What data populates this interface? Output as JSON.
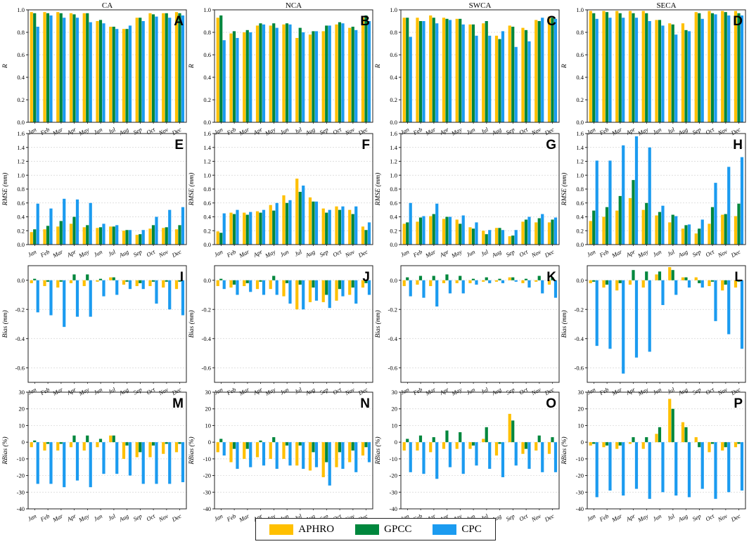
{
  "colors": {
    "APHRO": "#FFC000",
    "GPCC": "#00873D",
    "CPC": "#1B9BF0"
  },
  "legend": [
    {
      "key": "APHRO",
      "label": "APHRO"
    },
    {
      "key": "GPCC",
      "label": "GPCC"
    },
    {
      "key": "CPC",
      "label": "CPC"
    }
  ],
  "chart_data": {
    "type": "bar",
    "months": [
      "Jan",
      "Feb",
      "Mar",
      "Apr",
      "May",
      "Jun",
      "Jul",
      "Aug",
      "Sep",
      "Oct",
      "Nov",
      "Dec"
    ],
    "columns": [
      "CA",
      "NCA",
      "SWCA",
      "SECA"
    ],
    "rows": [
      {
        "metric": "R",
        "ylabel": "R",
        "ylim": [
          0,
          1.0
        ],
        "ticks": [
          0.0,
          0.2,
          0.4,
          0.6,
          0.8,
          1.0
        ],
        "tickdec": 1
      },
      {
        "metric": "RMSE",
        "ylabel": "RMSE (mm)",
        "ylim": [
          0,
          1.6
        ],
        "ticks": [
          0.0,
          0.2,
          0.4,
          0.6,
          0.8,
          1.0,
          1.2,
          1.4,
          1.6
        ],
        "tickdec": 1
      },
      {
        "metric": "Bias",
        "ylabel": "Bias (mm)",
        "ylim": [
          -0.7,
          0.1
        ],
        "ticks": [
          -0.6,
          -0.4,
          -0.2,
          0.0
        ],
        "tickdec": 1
      },
      {
        "metric": "RBias",
        "ylabel": "RBias (%)",
        "ylim": [
          -40,
          30
        ],
        "ticks": [
          -40,
          -30,
          -20,
          -10,
          0,
          10,
          20,
          30
        ],
        "tickdec": 0
      }
    ],
    "panels": [
      {
        "letter": "A",
        "title": "CA",
        "row": 0,
        "col": 0,
        "series": {
          "APHRO": [
            0.98,
            0.98,
            0.98,
            0.97,
            0.97,
            0.9,
            0.85,
            0.83,
            0.93,
            0.97,
            0.97,
            0.98
          ],
          "GPCC": [
            0.97,
            0.97,
            0.97,
            0.96,
            0.97,
            0.91,
            0.85,
            0.83,
            0.93,
            0.96,
            0.97,
            0.97
          ],
          "CPC": [
            0.85,
            0.95,
            0.93,
            0.93,
            0.89,
            0.88,
            0.83,
            0.86,
            0.9,
            0.94,
            0.93,
            0.95
          ]
        }
      },
      {
        "letter": "B",
        "title": "NCA",
        "row": 0,
        "col": 1,
        "series": {
          "APHRO": [
            0.93,
            0.79,
            0.8,
            0.86,
            0.86,
            0.87,
            0.75,
            0.78,
            0.81,
            0.87,
            0.84,
            0.93
          ],
          "GPCC": [
            0.95,
            0.81,
            0.82,
            0.88,
            0.88,
            0.88,
            0.84,
            0.81,
            0.86,
            0.89,
            0.85,
            0.95
          ],
          "CPC": [
            0.73,
            0.75,
            0.8,
            0.87,
            0.84,
            0.87,
            0.8,
            0.81,
            0.86,
            0.88,
            0.82,
            0.9
          ]
        }
      },
      {
        "letter": "C",
        "title": "SWCA",
        "row": 0,
        "col": 2,
        "series": {
          "APHRO": [
            0.93,
            0.93,
            0.95,
            0.93,
            0.92,
            0.87,
            0.88,
            0.77,
            0.86,
            0.84,
            0.91,
            0.94
          ],
          "GPCC": [
            0.93,
            0.9,
            0.93,
            0.92,
            0.92,
            0.87,
            0.9,
            0.74,
            0.85,
            0.82,
            0.9,
            0.93
          ],
          "CPC": [
            0.76,
            0.9,
            0.88,
            0.91,
            0.87,
            0.77,
            0.77,
            0.81,
            0.67,
            0.72,
            0.93,
            0.92
          ]
        }
      },
      {
        "letter": "D",
        "title": "SECA",
        "row": 0,
        "col": 3,
        "series": {
          "APHRO": [
            0.99,
            0.99,
            0.99,
            0.99,
            0.99,
            0.91,
            0.88,
            0.88,
            0.98,
            0.99,
            0.99,
            0.99
          ],
          "GPCC": [
            0.97,
            0.98,
            0.97,
            0.97,
            0.97,
            0.91,
            0.87,
            0.82,
            0.97,
            0.97,
            0.98,
            0.97
          ],
          "CPC": [
            0.92,
            0.93,
            0.93,
            0.93,
            0.9,
            0.86,
            0.78,
            0.81,
            0.92,
            0.96,
            0.95,
            0.95
          ]
        }
      },
      {
        "letter": "E",
        "title": "",
        "row": 1,
        "col": 0,
        "series": {
          "APHRO": [
            0.18,
            0.22,
            0.26,
            0.3,
            0.25,
            0.24,
            0.26,
            0.2,
            0.14,
            0.23,
            0.24,
            0.22
          ],
          "GPCC": [
            0.22,
            0.27,
            0.34,
            0.4,
            0.28,
            0.25,
            0.26,
            0.21,
            0.15,
            0.28,
            0.25,
            0.28
          ],
          "CPC": [
            0.59,
            0.52,
            0.66,
            0.65,
            0.6,
            0.3,
            0.28,
            0.21,
            0.21,
            0.4,
            0.5,
            0.54
          ]
        }
      },
      {
        "letter": "F",
        "title": "",
        "row": 1,
        "col": 1,
        "series": {
          "APHRO": [
            0.19,
            0.46,
            0.46,
            0.48,
            0.57,
            0.71,
            0.95,
            0.68,
            0.52,
            0.55,
            0.5,
            0.26
          ],
          "GPCC": [
            0.17,
            0.44,
            0.43,
            0.46,
            0.49,
            0.6,
            0.76,
            0.62,
            0.46,
            0.5,
            0.44,
            0.21
          ],
          "CPC": [
            0.45,
            0.5,
            0.47,
            0.5,
            0.6,
            0.64,
            0.85,
            0.62,
            0.5,
            0.55,
            0.55,
            0.32
          ]
        }
      },
      {
        "letter": "G",
        "title": "",
        "row": 1,
        "col": 2,
        "series": {
          "APHRO": [
            0.3,
            0.33,
            0.41,
            0.37,
            0.36,
            0.25,
            0.2,
            0.24,
            0.12,
            0.33,
            0.32,
            0.32
          ],
          "GPCC": [
            0.32,
            0.39,
            0.44,
            0.4,
            0.3,
            0.23,
            0.15,
            0.24,
            0.13,
            0.36,
            0.38,
            0.36
          ],
          "CPC": [
            0.6,
            0.41,
            0.59,
            0.4,
            0.42,
            0.32,
            0.21,
            0.21,
            0.21,
            0.4,
            0.44,
            0.39
          ]
        }
      },
      {
        "letter": "H",
        "title": "",
        "row": 1,
        "col": 3,
        "series": {
          "APHRO": [
            0.34,
            0.4,
            0.49,
            0.67,
            0.5,
            0.42,
            0.32,
            0.23,
            0.16,
            0.3,
            0.43,
            0.41
          ],
          "GPCC": [
            0.49,
            0.54,
            0.7,
            0.93,
            0.6,
            0.47,
            0.43,
            0.28,
            0.23,
            0.54,
            0.44,
            0.59
          ],
          "CPC": [
            1.21,
            1.21,
            1.43,
            1.56,
            1.4,
            0.56,
            0.41,
            0.29,
            0.36,
            0.89,
            1.12,
            1.26
          ]
        }
      },
      {
        "letter": "I",
        "title": "",
        "row": 2,
        "col": 0,
        "series": {
          "APHRO": [
            -0.02,
            -0.04,
            -0.05,
            -0.02,
            -0.04,
            -0.01,
            0.02,
            -0.03,
            -0.04,
            -0.04,
            -0.05,
            -0.06
          ],
          "GPCC": [
            0.01,
            -0.01,
            -0.01,
            0.04,
            0.04,
            0.01,
            0.02,
            -0.01,
            -0.02,
            -0.01,
            -0.01,
            -0.01
          ],
          "CPC": [
            -0.22,
            -0.24,
            -0.32,
            -0.25,
            -0.25,
            -0.11,
            -0.1,
            -0.06,
            -0.06,
            -0.16,
            -0.2,
            -0.24
          ]
        }
      },
      {
        "letter": "J",
        "title": "",
        "row": 2,
        "col": 1,
        "series": {
          "APHRO": [
            -0.04,
            -0.05,
            -0.04,
            -0.06,
            -0.06,
            -0.11,
            -0.2,
            -0.15,
            -0.15,
            -0.14,
            -0.1,
            -0.05
          ],
          "GPCC": [
            0.01,
            -0.03,
            -0.02,
            -0.01,
            0.03,
            -0.02,
            -0.03,
            -0.05,
            -0.1,
            -0.06,
            -0.05,
            -0.02
          ],
          "CPC": [
            -0.06,
            -0.1,
            -0.08,
            -0.1,
            -0.1,
            -0.16,
            -0.2,
            -0.14,
            -0.19,
            -0.11,
            -0.16,
            -0.1
          ]
        }
      },
      {
        "letter": "K",
        "title": "",
        "row": 2,
        "col": 2,
        "series": {
          "APHRO": [
            -0.04,
            -0.03,
            -0.04,
            -0.02,
            -0.02,
            -0.02,
            -0.01,
            -0.01,
            0.02,
            -0.02,
            -0.01,
            -0.03
          ],
          "GPCC": [
            0.02,
            0.03,
            0.03,
            0.04,
            0.03,
            0.01,
            0.02,
            0.01,
            0.02,
            0.01,
            0.03,
            0.02
          ],
          "CPC": [
            -0.11,
            -0.12,
            -0.18,
            -0.09,
            -0.09,
            -0.03,
            -0.02,
            -0.02,
            -0.01,
            -0.05,
            -0.09,
            -0.12
          ]
        }
      },
      {
        "letter": "L",
        "title": "",
        "row": 2,
        "col": 3,
        "series": {
          "APHRO": [
            -0.02,
            -0.05,
            -0.07,
            -0.03,
            -0.05,
            0.04,
            0.09,
            0.02,
            0.02,
            -0.04,
            -0.07,
            -0.05
          ],
          "GPCC": [
            -0.01,
            -0.03,
            -0.02,
            0.07,
            0.06,
            0.06,
            0.07,
            0.02,
            -0.02,
            -0.01,
            -0.03,
            -0.01
          ],
          "CPC": [
            -0.45,
            -0.47,
            -0.64,
            -0.53,
            -0.49,
            -0.17,
            -0.1,
            -0.05,
            -0.05,
            -0.28,
            -0.37,
            -0.47
          ]
        }
      },
      {
        "letter": "M",
        "title": "",
        "row": 3,
        "col": 0,
        "series": {
          "APHRO": [
            -3,
            -5,
            -5,
            -3,
            -5,
            -3,
            4,
            -10,
            -9,
            -9,
            -7,
            -6
          ],
          "GPCC": [
            1,
            -1,
            -1,
            4,
            4,
            2,
            4,
            -2,
            -6,
            -2,
            -1,
            -1
          ],
          "CPC": [
            -25,
            -25,
            -27,
            -23,
            -27,
            -19,
            -19,
            -20,
            -25,
            -25,
            -25,
            -24
          ]
        }
      },
      {
        "letter": "N",
        "title": "",
        "row": 3,
        "col": 1,
        "series": {
          "APHRO": [
            -6,
            -12,
            -10,
            -9,
            -10,
            -10,
            -14,
            -17,
            -21,
            -15,
            -12,
            -8
          ],
          "GPCC": [
            2,
            -4,
            -4,
            1,
            3,
            -2,
            -2,
            -6,
            -12,
            -6,
            -5,
            -3
          ],
          "CPC": [
            -8,
            -16,
            -15,
            -14,
            -16,
            -14,
            -16,
            -15,
            -26,
            -16,
            -18,
            -12
          ]
        }
      },
      {
        "letter": "O",
        "title": "",
        "row": 3,
        "col": 2,
        "series": {
          "APHRO": [
            -5,
            -5,
            -6,
            -4,
            -4,
            -4,
            2,
            -8,
            17,
            -7,
            -5,
            -7
          ],
          "GPCC": [
            2,
            4,
            3,
            7,
            6,
            -2,
            9,
            -1,
            13,
            -4,
            4,
            3
          ],
          "CPC": [
            -18,
            -19,
            -22,
            -15,
            -19,
            -14,
            -16,
            -21,
            -14,
            -16,
            -18,
            -18
          ]
        }
      },
      {
        "letter": "P",
        "title": "",
        "row": 3,
        "col": 3,
        "series": {
          "APHRO": [
            -2,
            -3,
            -4,
            -1,
            -4,
            5,
            26,
            12,
            3,
            -6,
            -5,
            -3
          ],
          "GPCC": [
            -1,
            -2,
            -2,
            3,
            3,
            9,
            20,
            9,
            -3,
            -1,
            -3,
            -1
          ],
          "CPC": [
            -33,
            -29,
            -32,
            -28,
            -34,
            -30,
            -32,
            -33,
            -28,
            -34,
            -30,
            -29
          ]
        }
      }
    ]
  }
}
